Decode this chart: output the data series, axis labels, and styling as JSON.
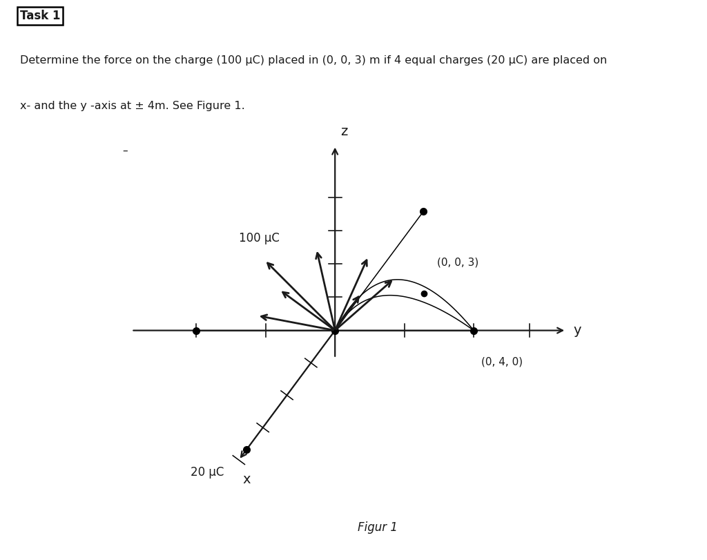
{
  "title": "Task 1",
  "problem_text_line1": "Determine the force on the charge (100 μC) placed in (0, 0, 3) m if 4 equal charges (20 μC) are placed on",
  "problem_text_line2": "x- and the y -axis at ± 4m. See Figure 1.",
  "figure_caption": "Figur 1",
  "bg_color": "#ffffff",
  "text_color": "#1a1a1a",
  "axis_color": "#1a1a1a",
  "arrow_color": "#1a1a1a",
  "label_100uC": "100 μC",
  "label_20uC": "20 μC",
  "label_004": "(0, 4, 0)",
  "label_003": "(0, 0, 3)",
  "label_z": "z",
  "label_y": "y",
  "label_x": "x",
  "force_arrows": [
    [
      -0.38,
      0.38
    ],
    [
      -0.3,
      0.22
    ],
    [
      -0.42,
      0.08
    ],
    [
      0.18,
      0.4
    ],
    [
      0.32,
      0.28
    ],
    [
      0.14,
      0.2
    ],
    [
      -0.1,
      0.44
    ]
  ]
}
